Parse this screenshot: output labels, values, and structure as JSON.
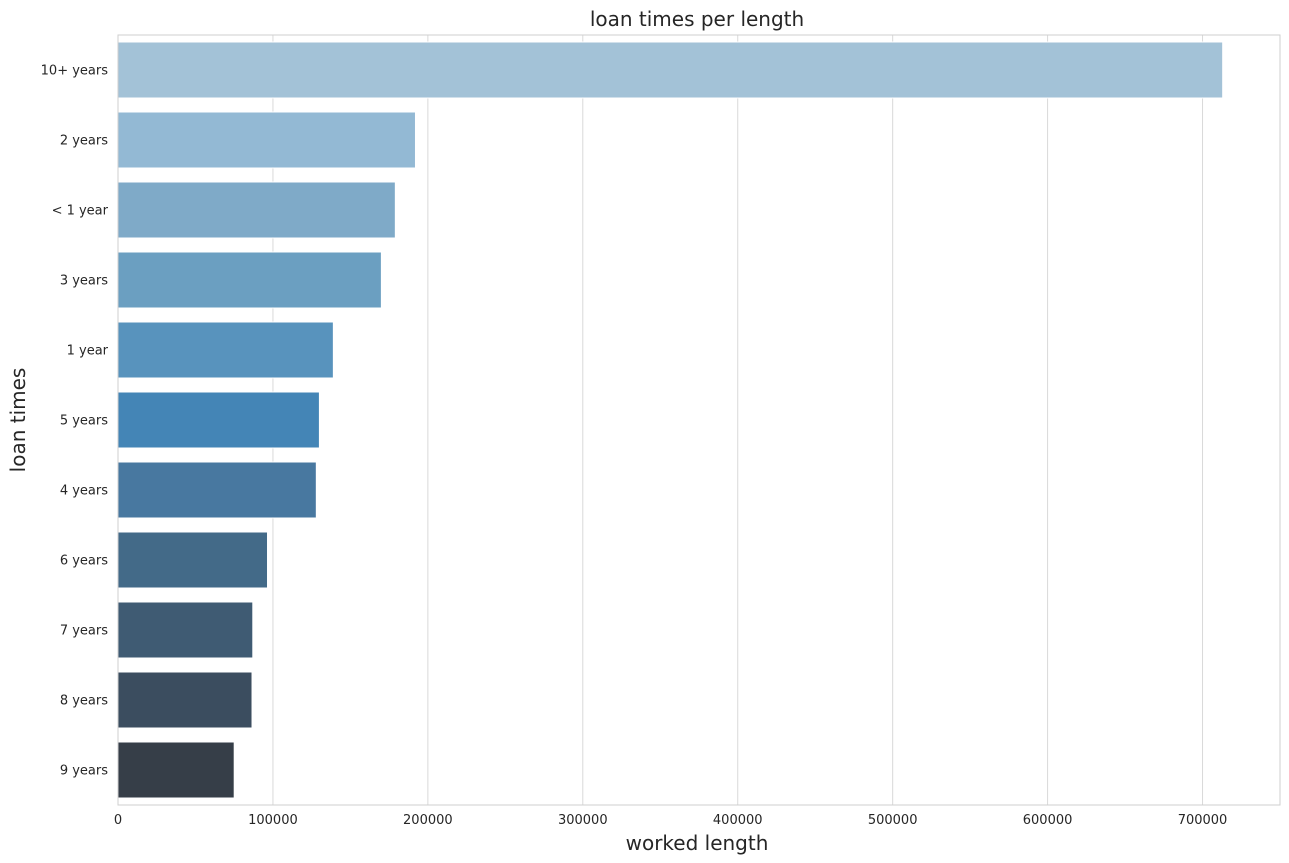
{
  "chart_data": {
    "type": "bar",
    "orientation": "horizontal",
    "title": "loan times per length",
    "xlabel": "worked length",
    "ylabel": "loan times",
    "xlim": [
      0,
      750000
    ],
    "xticks": [
      0,
      100000,
      200000,
      300000,
      400000,
      500000,
      600000,
      700000
    ],
    "xtick_labels": [
      "0",
      "100000",
      "200000",
      "300000",
      "400000",
      "500000",
      "600000",
      "700000"
    ],
    "grid": "vertical",
    "categories": [
      "10+ years",
      "2 years",
      "< 1 year",
      "3 years",
      "1 year",
      "5 years",
      "4 years",
      "6 years",
      "7 years",
      "8 years",
      "9 years"
    ],
    "values": [
      713000,
      192000,
      179000,
      170000,
      139000,
      130000,
      128000,
      96500,
      87000,
      86500,
      75000
    ],
    "colors": [
      "#a3c2d7",
      "#93b9d4",
      "#7faac8",
      "#6b9fc1",
      "#5893bd",
      "#4485b6",
      "#4878a0",
      "#436a88",
      "#3f5b73",
      "#3b4d5f",
      "#363e48"
    ]
  }
}
